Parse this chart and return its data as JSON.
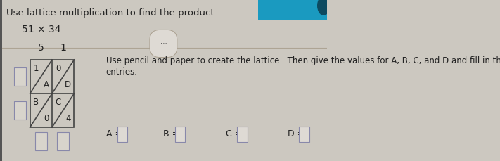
{
  "title": "Use lattice multiplication to find the product.",
  "equation": "51 × 34",
  "col_labels": [
    "5",
    "1"
  ],
  "cell_values": {
    "top_left_upper": "1",
    "top_left_lower": "A",
    "top_right_upper": "0",
    "top_right_lower": "D",
    "bot_left_upper": "B",
    "bot_left_lower": "0",
    "bot_right_upper": "C",
    "bot_right_lower": "4"
  },
  "instruction_line1": "Use pencil and paper to create the lattice.  Then give the values for A, B, C, and D and fill in the missing",
  "instruction_line2": "entries.",
  "answer_labels": [
    "A =",
    "B =",
    "C =",
    "D ="
  ],
  "bg_color": "#ccc8c0",
  "header_color": "#1a9ac0",
  "lattice_color": "#444444",
  "side_box_color": "#d8d4cc",
  "side_box_edge": "#8888aa",
  "answer_box_color": "#dedad4",
  "answer_box_edge": "#8888aa",
  "text_color": "#222222",
  "title_fontsize": 9.5,
  "eq_fontsize": 10,
  "label_fontsize": 10,
  "cell_fontsize": 8.5,
  "instr_fontsize": 8.5,
  "ans_fontsize": 9
}
